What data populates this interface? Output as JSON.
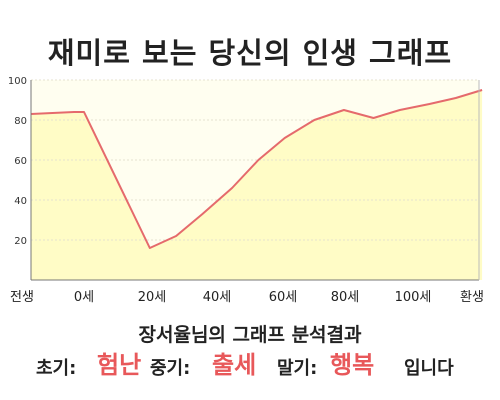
{
  "chart_data": {
    "type": "area",
    "title": "재미로 보는 당신의 인생 그래프",
    "subtitle": "장서율님의 그래프 분석결과",
    "x_ticks": [
      "전생",
      "0세",
      "20세",
      "40세",
      "60세",
      "80세",
      "100세",
      "환생"
    ],
    "y_ticks": [
      20,
      40,
      60,
      80,
      100
    ],
    "ylim": [
      0,
      100
    ],
    "grid": true,
    "series": [
      {
        "x": [
          "전생",
          -3,
          0,
          20,
          28,
          36,
          45,
          53,
          61,
          70,
          79,
          88,
          96,
          105,
          113,
          121
        ],
        "y": [
          83,
          84,
          84,
          16,
          22,
          33,
          46,
          60,
          71,
          80,
          85,
          81,
          85,
          88,
          91,
          95
        ]
      }
    ],
    "colors": {
      "line": "#e56a6c",
      "fill": "#fffcc6",
      "plot_bg": "#fffef0"
    }
  },
  "result": {
    "early_label": "초기:",
    "early_value": "험난",
    "mid_label": "중기:",
    "mid_value": "출세",
    "late_label": "말기:",
    "late_value": "행복",
    "closing": "입니다"
  }
}
